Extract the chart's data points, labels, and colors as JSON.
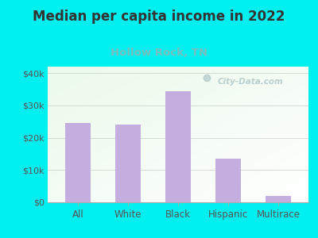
{
  "title": "Median per capita income in 2022",
  "subtitle": "Hollow Rock, TN",
  "categories": [
    "All",
    "White",
    "Black",
    "Hispanic",
    "Multirace"
  ],
  "values": [
    24500,
    24000,
    34500,
    13500,
    2000
  ],
  "bar_color": "#C4AEE0",
  "title_fontsize": 12,
  "subtitle_fontsize": 9.5,
  "subtitle_color": "#7ABFBF",
  "title_color": "#333333",
  "background_outer": "#00EFEF",
  "tick_color": "#555555",
  "xlabel_fontsize": 8.5,
  "ylabel_fontsize": 8,
  "ylim": [
    0,
    42000
  ],
  "yticks": [
    0,
    10000,
    20000,
    30000,
    40000
  ],
  "ytick_labels": [
    "$0",
    "$10k",
    "$20k",
    "$30k",
    "$40k"
  ],
  "watermark": "City-Data.com",
  "watermark_color": "#b0c8c8",
  "grid_color": "#d0ddd0",
  "spine_bottom_color": "#aaaaaa"
}
